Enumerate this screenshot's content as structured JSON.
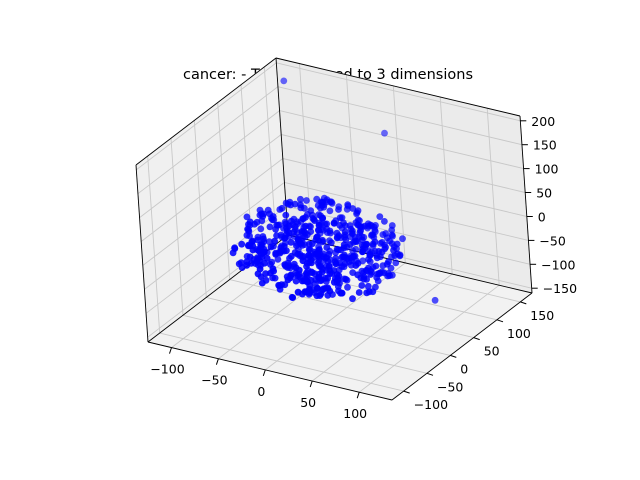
{
  "chart_data": {
    "type": "scatter",
    "projection": "3d",
    "title": "cancer: - TSNE reduced to 3 dimensions",
    "xlabel": "",
    "ylabel": "",
    "zlabel": "",
    "grid": true,
    "marker_color": "#0000ff",
    "xlim": [
      -125,
      135
    ],
    "ylim": [
      -125,
      175
    ],
    "zlim": [
      -160,
      210
    ],
    "x_ticks": [
      -100,
      -50,
      0,
      50,
      100
    ],
    "y_ticks": [
      -100,
      -50,
      0,
      50,
      100,
      150
    ],
    "z_ticks": [
      -150,
      -100,
      -50,
      0,
      50,
      100,
      150,
      200
    ],
    "x_tick_labels": [
      "−100",
      "−50",
      "0",
      "50",
      "100"
    ],
    "y_tick_labels": [
      "−100",
      "−50",
      "0",
      "50",
      "100",
      "150"
    ],
    "z_tick_labels": [
      "−150",
      "−100",
      "−50",
      "0",
      "50",
      "100",
      "150",
      "200"
    ],
    "cluster_center": [
      0,
      0,
      0
    ],
    "cluster_radius": 85,
    "cluster_point_count": 569,
    "outliers": [
      {
        "x": -105,
        "y": 150,
        "z": 190
      },
      {
        "x": -5,
        "y": 160,
        "z": 120
      },
      {
        "x": 80,
        "y": 80,
        "z": -130
      }
    ]
  }
}
